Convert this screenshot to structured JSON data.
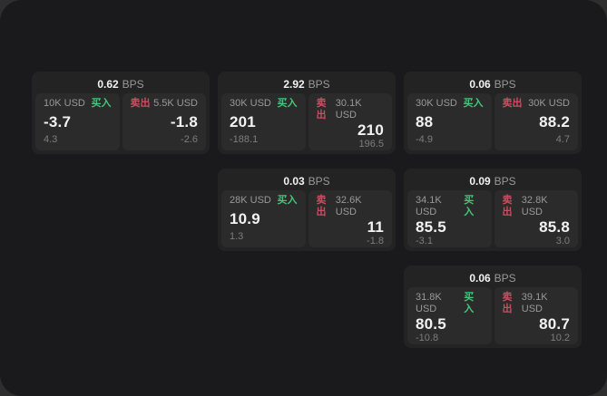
{
  "labels": {
    "bps_unit": "BPS",
    "buy": "买入",
    "sell": "卖出"
  },
  "colors": {
    "background_outer": "#2e2e2e",
    "panel": "#1a1a1c",
    "card": "#232323",
    "tile": "#2b2b2b",
    "buy": "#45c57b",
    "sell": "#cb4e60",
    "value_text": "#f2f2f2",
    "muted_text": "#999999",
    "delta_text": "#7d7d7d"
  },
  "cards": [
    {
      "bps": "0.62",
      "buy": {
        "amount": "10K USD",
        "value": "-3.7",
        "delta": "4.3"
      },
      "sell": {
        "amount": "5.5K USD",
        "value": "-1.8",
        "delta": "-2.6"
      }
    },
    {
      "bps": "2.92",
      "buy": {
        "amount": "30K USD",
        "value": "201",
        "delta": "-188.1"
      },
      "sell": {
        "amount": "30.1K USD",
        "value": "210",
        "delta": "196.5"
      }
    },
    {
      "bps": "0.06",
      "buy": {
        "amount": "30K USD",
        "value": "88",
        "delta": "-4.9"
      },
      "sell": {
        "amount": "30K USD",
        "value": "88.2",
        "delta": "4.7"
      }
    },
    {
      "bps": "0.03",
      "buy": {
        "amount": "28K USD",
        "value": "10.9",
        "delta": "1.3"
      },
      "sell": {
        "amount": "32.6K USD",
        "value": "11",
        "delta": "-1.8"
      }
    },
    {
      "bps": "0.09",
      "buy": {
        "amount": "34.1K USD",
        "value": "85.5",
        "delta": "-3.1"
      },
      "sell": {
        "amount": "32.8K USD",
        "value": "85.8",
        "delta": "3.0"
      }
    },
    {
      "bps": "0.06",
      "buy": {
        "amount": "31.8K USD",
        "value": "80.5",
        "delta": "-10.8"
      },
      "sell": {
        "amount": "39.1K USD",
        "value": "80.7",
        "delta": "10.2"
      }
    }
  ]
}
